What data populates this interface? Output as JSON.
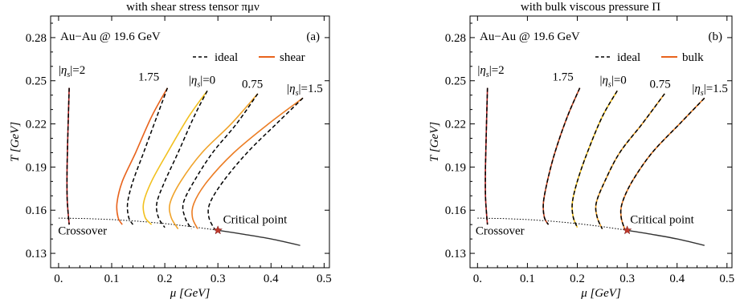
{
  "chart_data": [
    {
      "type": "line",
      "panel_label": "(a)",
      "title": "with shear stress tensor πμν",
      "annotation": "Au−Au @ 19.6 GeV",
      "xlabel": "μ [GeV]",
      "ylabel": "T [GeV]",
      "xlim": [
        -0.015,
        0.51
      ],
      "ylim": [
        0.12,
        0.295
      ],
      "xticks": [
        "0.",
        "0.1",
        "0.2",
        "0.3",
        "0.4",
        "0.5"
      ],
      "yticks": [
        "0.13",
        "0.16",
        "0.19",
        "0.22",
        "0.25",
        "0.28"
      ],
      "legend": {
        "placement": "top-right",
        "entries": [
          {
            "label": "ideal",
            "style": "dashed",
            "color": "#000000"
          },
          {
            "label": "shear",
            "style": "solid",
            "color": "#e8631c"
          }
        ]
      },
      "curve_labels": [
        {
          "text": "|ηs|=2",
          "at": [
            0.0,
            0.255
          ]
        },
        {
          "text": "1.75",
          "at": [
            0.15,
            0.25
          ]
        },
        {
          "text": "|ηs|=0",
          "at": [
            0.245,
            0.248
          ]
        },
        {
          "text": "0.75",
          "at": [
            0.345,
            0.245
          ]
        },
        {
          "text": "|ηs|=1.5",
          "at": [
            0.43,
            0.242
          ]
        }
      ],
      "phase_labels": {
        "crossover": "Crossover",
        "critical_point": "Critical point",
        "crossover_at": [
          0.045,
          0.143
        ],
        "critical_at": [
          0.37,
          0.151
        ]
      },
      "crossover_line": {
        "x": [
          0.0,
          0.05,
          0.1,
          0.15,
          0.2,
          0.25,
          0.3
        ],
        "y": [
          0.1545,
          0.1542,
          0.1535,
          0.1523,
          0.1507,
          0.1486,
          0.146
        ],
        "style": "dotted"
      },
      "first_order_line": {
        "x": [
          0.3,
          0.35,
          0.4,
          0.455
        ],
        "y": [
          0.146,
          0.1432,
          0.14,
          0.1355
        ],
        "style": "solid",
        "color": "#333333"
      },
      "critical_point": {
        "x": 0.3,
        "y": 0.146,
        "color": "#c0392b"
      },
      "series": [
        {
          "name": "ideal |ηs|=2",
          "style": "dashed",
          "color": "#000000",
          "x": [
            0.02,
            0.018,
            0.016,
            0.016,
            0.018,
            0.02
          ],
          "y": [
            0.245,
            0.22,
            0.19,
            0.17,
            0.158,
            0.15
          ]
        },
        {
          "name": "shear |ηs|=2",
          "style": "solid",
          "color": "#b22222",
          "x": [
            0.02,
            0.018,
            0.016,
            0.016,
            0.018,
            0.02
          ],
          "y": [
            0.245,
            0.22,
            0.19,
            0.17,
            0.158,
            0.15
          ]
        },
        {
          "name": "ideal |ηs|=1.75",
          "style": "dashed",
          "color": "#000000",
          "x": [
            0.205,
            0.185,
            0.16,
            0.14,
            0.13,
            0.132,
            0.14
          ],
          "y": [
            0.245,
            0.225,
            0.2,
            0.18,
            0.165,
            0.155,
            0.15
          ]
        },
        {
          "name": "shear |ηs|=1.75",
          "style": "solid",
          "color": "#e8631c",
          "x": [
            0.205,
            0.175,
            0.145,
            0.12,
            0.11,
            0.112,
            0.12
          ],
          "y": [
            0.245,
            0.225,
            0.2,
            0.18,
            0.165,
            0.155,
            0.15
          ]
        },
        {
          "name": "ideal |ηs|=0",
          "style": "dashed",
          "color": "#000000",
          "x": [
            0.28,
            0.255,
            0.225,
            0.2,
            0.185,
            0.188,
            0.2
          ],
          "y": [
            0.243,
            0.225,
            0.2,
            0.18,
            0.165,
            0.155,
            0.148
          ]
        },
        {
          "name": "shear |ηs|=0",
          "style": "solid",
          "color": "#f2c01e",
          "x": [
            0.28,
            0.245,
            0.205,
            0.175,
            0.16,
            0.163,
            0.175
          ],
          "y": [
            0.243,
            0.225,
            0.2,
            0.18,
            0.165,
            0.155,
            0.15
          ]
        },
        {
          "name": "ideal |ηs|=0.75",
          "style": "dashed",
          "color": "#000000",
          "x": [
            0.375,
            0.335,
            0.29,
            0.255,
            0.235,
            0.238,
            0.25
          ],
          "y": [
            0.241,
            0.22,
            0.2,
            0.18,
            0.165,
            0.155,
            0.147
          ]
        },
        {
          "name": "shear |ηs|=0.75",
          "style": "solid",
          "color": "#f0a32a",
          "x": [
            0.375,
            0.325,
            0.27,
            0.23,
            0.21,
            0.212,
            0.225
          ],
          "y": [
            0.241,
            0.22,
            0.2,
            0.18,
            0.165,
            0.155,
            0.147
          ]
        },
        {
          "name": "ideal |ηs|=1.5",
          "style": "dashed",
          "color": "#000000",
          "x": [
            0.46,
            0.41,
            0.355,
            0.31,
            0.285,
            0.283,
            0.295
          ],
          "y": [
            0.238,
            0.22,
            0.2,
            0.18,
            0.165,
            0.155,
            0.146
          ]
        },
        {
          "name": "shear |ηs|=1.5",
          "style": "solid",
          "color": "#ec7d24",
          "x": [
            0.46,
            0.395,
            0.33,
            0.28,
            0.255,
            0.252,
            0.262
          ],
          "y": [
            0.238,
            0.22,
            0.2,
            0.18,
            0.165,
            0.155,
            0.147
          ]
        }
      ]
    },
    {
      "type": "line",
      "panel_label": "(b)",
      "title": "with bulk viscous pressure Π",
      "annotation": "Au−Au @ 19.6 GeV",
      "xlabel": "μ [GeV]",
      "ylabel": "T [GeV]",
      "xlim": [
        -0.015,
        0.51
      ],
      "ylim": [
        0.12,
        0.295
      ],
      "xticks": [
        "0.",
        "0.1",
        "0.2",
        "0.3",
        "0.4",
        "0.5"
      ],
      "yticks": [
        "0.13",
        "0.16",
        "0.19",
        "0.22",
        "0.25",
        "0.28"
      ],
      "legend": {
        "placement": "top-right",
        "entries": [
          {
            "label": "ideal",
            "style": "dashed",
            "color": "#000000"
          },
          {
            "label": "bulk",
            "style": "solid",
            "color": "#e8631c"
          }
        ]
      },
      "curve_labels": [
        {
          "text": "|ηs|=2",
          "at": [
            0.0,
            0.255
          ]
        },
        {
          "text": "1.75",
          "at": [
            0.15,
            0.25
          ]
        },
        {
          "text": "|ηs|=0",
          "at": [
            0.245,
            0.248
          ]
        },
        {
          "text": "0.75",
          "at": [
            0.345,
            0.245
          ]
        },
        {
          "text": "|ηs|=1.5",
          "at": [
            0.43,
            0.242
          ]
        }
      ],
      "phase_labels": {
        "crossover": "Crossover",
        "critical_point": "Critical point",
        "crossover_at": [
          0.045,
          0.143
        ],
        "critical_at": [
          0.37,
          0.151
        ]
      },
      "crossover_line": {
        "x": [
          0.0,
          0.05,
          0.1,
          0.15,
          0.2,
          0.25,
          0.3
        ],
        "y": [
          0.1545,
          0.1542,
          0.1535,
          0.1523,
          0.1507,
          0.1486,
          0.146
        ],
        "style": "dotted"
      },
      "first_order_line": {
        "x": [
          0.3,
          0.35,
          0.4,
          0.455
        ],
        "y": [
          0.146,
          0.1432,
          0.14,
          0.1355
        ],
        "style": "solid",
        "color": "#333333"
      },
      "critical_point": {
        "x": 0.3,
        "y": 0.146,
        "color": "#c0392b"
      },
      "series": [
        {
          "name": "ideal |ηs|=2",
          "style": "dashed",
          "color": "#000000",
          "x": [
            0.02,
            0.018,
            0.016,
            0.016,
            0.018,
            0.02
          ],
          "y": [
            0.245,
            0.22,
            0.19,
            0.17,
            0.158,
            0.15
          ]
        },
        {
          "name": "bulk |ηs|=2",
          "style": "solid",
          "color": "#b22222",
          "x": [
            0.02,
            0.018,
            0.016,
            0.016,
            0.018,
            0.02
          ],
          "y": [
            0.245,
            0.22,
            0.19,
            0.17,
            0.158,
            0.15
          ]
        },
        {
          "name": "ideal |ηs|=1.75",
          "style": "dashed",
          "color": "#000000",
          "x": [
            0.205,
            0.18,
            0.155,
            0.14,
            0.132,
            0.134,
            0.142
          ],
          "y": [
            0.245,
            0.225,
            0.2,
            0.18,
            0.165,
            0.155,
            0.15
          ]
        },
        {
          "name": "bulk |ηs|=1.75",
          "style": "solid",
          "color": "#c8451e",
          "x": [
            0.205,
            0.18,
            0.155,
            0.14,
            0.132,
            0.134,
            0.142
          ],
          "y": [
            0.245,
            0.225,
            0.2,
            0.18,
            0.165,
            0.155,
            0.15
          ]
        },
        {
          "name": "ideal |ηs|=0",
          "style": "dashed",
          "color": "#000000",
          "x": [
            0.28,
            0.25,
            0.22,
            0.2,
            0.19,
            0.192,
            0.2
          ],
          "y": [
            0.243,
            0.225,
            0.2,
            0.18,
            0.165,
            0.155,
            0.148
          ]
        },
        {
          "name": "bulk |ηs|=0",
          "style": "solid",
          "color": "#f2c01e",
          "x": [
            0.28,
            0.25,
            0.22,
            0.2,
            0.19,
            0.192,
            0.2
          ],
          "y": [
            0.243,
            0.225,
            0.2,
            0.18,
            0.165,
            0.155,
            0.148
          ]
        },
        {
          "name": "ideal |ηs|=0.75",
          "style": "dashed",
          "color": "#000000",
          "x": [
            0.375,
            0.33,
            0.285,
            0.255,
            0.238,
            0.24,
            0.25
          ],
          "y": [
            0.241,
            0.22,
            0.2,
            0.18,
            0.165,
            0.155,
            0.147
          ]
        },
        {
          "name": "bulk |ηs|=0.75",
          "style": "solid",
          "color": "#f0a32a",
          "x": [
            0.375,
            0.33,
            0.285,
            0.255,
            0.238,
            0.24,
            0.25
          ],
          "y": [
            0.241,
            0.22,
            0.2,
            0.18,
            0.165,
            0.155,
            0.147
          ]
        },
        {
          "name": "ideal |ηs|=1.5",
          "style": "dashed",
          "color": "#000000",
          "x": [
            0.455,
            0.405,
            0.35,
            0.31,
            0.29,
            0.288,
            0.296
          ],
          "y": [
            0.238,
            0.22,
            0.2,
            0.18,
            0.165,
            0.155,
            0.146
          ]
        },
        {
          "name": "bulk |ηs|=1.5",
          "style": "solid",
          "color": "#ec7d24",
          "x": [
            0.455,
            0.405,
            0.35,
            0.31,
            0.29,
            0.288,
            0.296
          ],
          "y": [
            0.238,
            0.22,
            0.2,
            0.18,
            0.165,
            0.155,
            0.146
          ]
        }
      ]
    }
  ]
}
